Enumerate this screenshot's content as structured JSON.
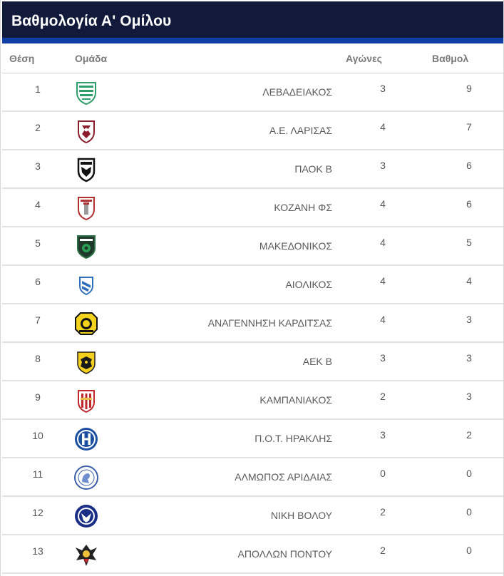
{
  "page": {
    "title": "Βαθμολογία Α' Ομίλου"
  },
  "table": {
    "headers": {
      "position": "Θέση",
      "team": "Ομάδα",
      "games": "Αγώνες",
      "points": "Βαθμολ"
    },
    "rows": [
      {
        "position": "1",
        "team": "ΛΕΒΑΔΕΙΑΚΟΣ",
        "games": "3",
        "points": "9",
        "logo_icon": "levadeiakos-crest-icon"
      },
      {
        "position": "2",
        "team": "Α.Ε. ΛΑΡΙΣΑΣ",
        "games": "4",
        "points": "7",
        "logo_icon": "ael-larisa-crest-icon"
      },
      {
        "position": "3",
        "team": "ΠΑΟΚ Β",
        "games": "3",
        "points": "6",
        "logo_icon": "paok-crest-icon"
      },
      {
        "position": "4",
        "team": "ΚΟΖΑΝΗ ΦΣ",
        "games": "4",
        "points": "6",
        "logo_icon": "kozani-crest-icon"
      },
      {
        "position": "5",
        "team": "ΜΑΚΕΔΟΝΙΚΟΣ",
        "games": "4",
        "points": "5",
        "logo_icon": "makedonikos-crest-icon"
      },
      {
        "position": "6",
        "team": "ΑΙΟΛΙΚΟΣ",
        "games": "4",
        "points": "4",
        "logo_icon": "aiolikos-crest-icon"
      },
      {
        "position": "7",
        "team": "ΑΝΑΓΕΝΝΗΣΗ ΚΑΡΔΙΤΣΑΣ",
        "games": "4",
        "points": "3",
        "logo_icon": "anagennisi-karditsas-crest-icon"
      },
      {
        "position": "8",
        "team": "ΑΕΚ Β",
        "games": "3",
        "points": "3",
        "logo_icon": "aek-crest-icon"
      },
      {
        "position": "9",
        "team": "ΚΑΜΠΑΝΙΑΚΟΣ",
        "games": "2",
        "points": "3",
        "logo_icon": "kampaniakos-crest-icon"
      },
      {
        "position": "10",
        "team": "Π.Ο.Τ. ΗΡΑΚΛΗΣ",
        "games": "3",
        "points": "2",
        "logo_icon": "iraklis-crest-icon"
      },
      {
        "position": "11",
        "team": "ΑΛΜΩΠΟΣ ΑΡΙΔΑΙΑΣ",
        "games": "0",
        "points": "0",
        "logo_icon": "almopos-crest-icon"
      },
      {
        "position": "12",
        "team": "ΝΙΚΗ ΒΟΛΟΥ",
        "games": "2",
        "points": "0",
        "logo_icon": "niki-volou-crest-icon"
      },
      {
        "position": "13",
        "team": "ΑΠΟΛΛΩΝ ΠΟΝΤΟΥ",
        "games": "2",
        "points": "0",
        "logo_icon": "apollon-pontou-crest-icon"
      }
    ]
  },
  "colors": {
    "title_bg": "#111a3a",
    "title_stripe": "#123fa6",
    "header_text": "#7a7a7a",
    "row_divider": "#e2e2e2"
  }
}
